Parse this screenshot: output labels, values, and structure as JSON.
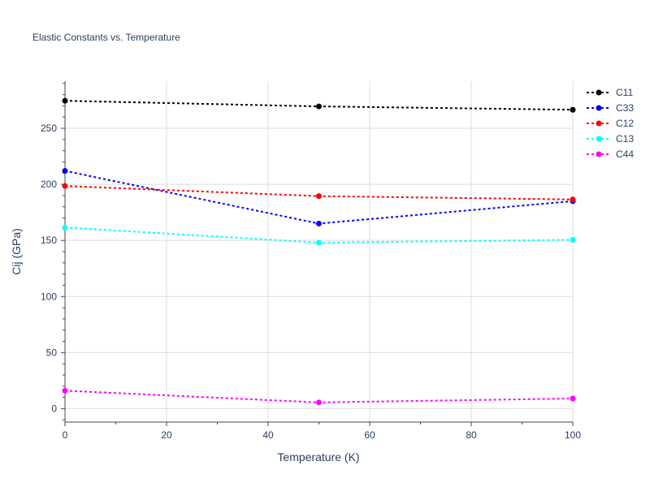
{
  "chart_data": {
    "type": "line",
    "title": "Elastic Constants vs. Temperature",
    "xlabel": "Temperature (K)",
    "ylabel": "Cij (GPa)",
    "xlim": [
      0,
      100
    ],
    "ylim": [
      -12,
      292
    ],
    "xticks": [
      0,
      20,
      40,
      60,
      80,
      100
    ],
    "yticks": [
      0,
      50,
      100,
      150,
      200,
      250
    ],
    "grid": true,
    "legend_position": "top-right",
    "x": [
      0,
      50,
      100
    ],
    "series": [
      {
        "name": "C11",
        "color": "#000000",
        "values": [
          274.5,
          269.5,
          266.5
        ]
      },
      {
        "name": "C33",
        "color": "#0000ff",
        "values": [
          212,
          165,
          185
        ]
      },
      {
        "name": "C12",
        "color": "#ff0000",
        "values": [
          198.5,
          189.5,
          186.5
        ]
      },
      {
        "name": "C13",
        "color": "#00ffff",
        "values": [
          161.5,
          148,
          150.5
        ]
      },
      {
        "name": "C44",
        "color": "#ff00ff",
        "values": [
          16,
          5.5,
          9
        ]
      }
    ]
  }
}
